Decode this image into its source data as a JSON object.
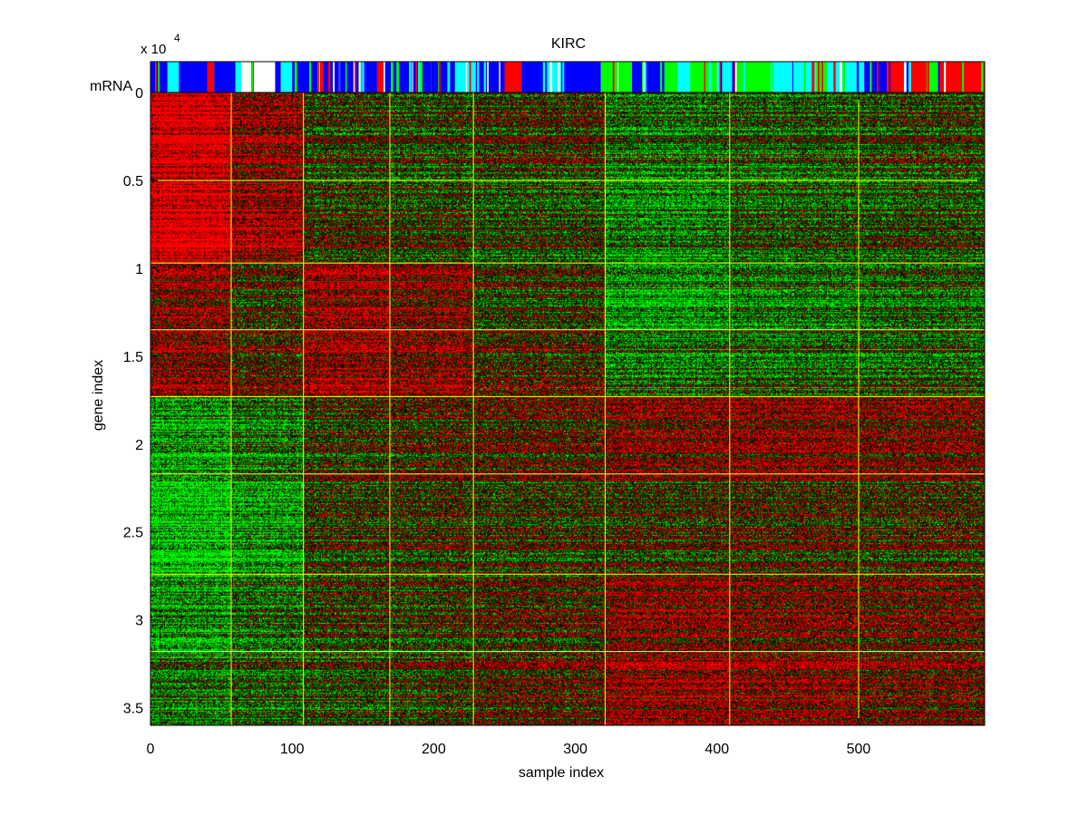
{
  "chart_data": {
    "type": "heatmap",
    "title": "KIRC",
    "xlabel": "sample index",
    "ylabel": "gene index",
    "strip_label": "mRNA",
    "y_exponent": {
      "base": "x 10",
      "power": "4"
    },
    "xlim": [
      0,
      589
    ],
    "ylim": [
      0,
      3.6
    ],
    "xticks": [
      0,
      100,
      200,
      300,
      400,
      500
    ],
    "xtick_labels": [
      "0",
      "100",
      "200",
      "300",
      "400",
      "500"
    ],
    "yticks": [
      0,
      0.5,
      1,
      1.5,
      2,
      2.5,
      3,
      3.5
    ],
    "ytick_labels": [
      "0",
      "0.5",
      "1",
      "1.5",
      "2",
      "2.5",
      "3",
      "3.5"
    ],
    "sample_cluster_boundaries": [
      57,
      108,
      169,
      228,
      321,
      409,
      500
    ],
    "gene_cluster_boundaries": [
      0.5,
      0.97,
      1.35,
      1.73,
      2.17,
      2.74,
      3.18
    ],
    "row_segments": [
      0,
      0.5,
      0.97,
      1.35,
      1.73,
      2.17,
      2.74,
      3.18,
      3.6
    ],
    "col_segments": [
      0,
      57,
      108,
      169,
      228,
      321,
      409,
      500,
      589
    ],
    "block_bias": [
      [
        0.85,
        0.4,
        -0.05,
        -0.1,
        0.0,
        -0.3,
        -0.2,
        -0.1
      ],
      [
        0.95,
        0.55,
        0.05,
        0.0,
        -0.1,
        -0.35,
        -0.15,
        -0.1
      ],
      [
        0.45,
        0.05,
        0.55,
        0.4,
        0.0,
        -0.45,
        -0.3,
        -0.2
      ],
      [
        0.35,
        0.1,
        0.45,
        0.35,
        0.05,
        -0.35,
        -0.3,
        -0.25
      ],
      [
        -0.55,
        -0.35,
        -0.05,
        0.05,
        0.1,
        0.3,
        0.35,
        0.25
      ],
      [
        -0.65,
        -0.45,
        0.05,
        0.1,
        0.05,
        0.1,
        0.15,
        0.1
      ],
      [
        -0.45,
        -0.25,
        0.0,
        0.0,
        0.1,
        0.4,
        0.3,
        0.25
      ],
      [
        -0.35,
        -0.25,
        -0.15,
        -0.05,
        0.1,
        0.45,
        0.35,
        0.2
      ]
    ],
    "strip_blocks": [
      {
        "start": 0,
        "end": 12,
        "color": "#0000ff"
      },
      {
        "start": 12,
        "end": 20,
        "color": "#00ffff"
      },
      {
        "start": 20,
        "end": 40,
        "color": "#0000ff"
      },
      {
        "start": 40,
        "end": 45,
        "color": "#ff0000"
      },
      {
        "start": 45,
        "end": 60,
        "color": "#0000ff"
      },
      {
        "start": 60,
        "end": 64,
        "color": "#00ffff"
      },
      {
        "start": 64,
        "end": 70,
        "color": "#ffffff"
      },
      {
        "start": 70,
        "end": 73,
        "color": "#ff0000"
      },
      {
        "start": 73,
        "end": 88,
        "color": "#ffffff"
      },
      {
        "start": 88,
        "end": 92,
        "color": "#0000ff"
      },
      {
        "start": 92,
        "end": 100,
        "color": "#00ffff"
      },
      {
        "start": 100,
        "end": 118,
        "color": "#0000ff"
      },
      {
        "start": 118,
        "end": 122,
        "color": "#ff0000"
      },
      {
        "start": 122,
        "end": 160,
        "color": "#0000ff"
      },
      {
        "start": 160,
        "end": 165,
        "color": "#ff0000"
      },
      {
        "start": 165,
        "end": 198,
        "color": "#0000ff"
      },
      {
        "start": 198,
        "end": 215,
        "color": "#0000ff"
      },
      {
        "start": 215,
        "end": 232,
        "color": "#00ffff"
      },
      {
        "start": 232,
        "end": 250,
        "color": "#0000ff"
      },
      {
        "start": 250,
        "end": 262,
        "color": "#ff0000"
      },
      {
        "start": 262,
        "end": 280,
        "color": "#0000ff"
      },
      {
        "start": 280,
        "end": 290,
        "color": "#00ffff"
      },
      {
        "start": 290,
        "end": 318,
        "color": "#0000ff"
      },
      {
        "start": 318,
        "end": 340,
        "color": "#00ff00"
      },
      {
        "start": 340,
        "end": 360,
        "color": "#0000ff"
      },
      {
        "start": 360,
        "end": 372,
        "color": "#00ff00"
      },
      {
        "start": 372,
        "end": 382,
        "color": "#00ffff"
      },
      {
        "start": 382,
        "end": 400,
        "color": "#00ff00"
      },
      {
        "start": 400,
        "end": 412,
        "color": "#00ffff"
      },
      {
        "start": 412,
        "end": 438,
        "color": "#00ff00"
      },
      {
        "start": 438,
        "end": 470,
        "color": "#00ffff"
      },
      {
        "start": 470,
        "end": 478,
        "color": "#00ff00"
      },
      {
        "start": 478,
        "end": 504,
        "color": "#00ffff"
      },
      {
        "start": 504,
        "end": 520,
        "color": "#0000ff"
      },
      {
        "start": 520,
        "end": 532,
        "color": "#ff0000"
      },
      {
        "start": 532,
        "end": 537,
        "color": "#ffffff"
      },
      {
        "start": 537,
        "end": 548,
        "color": "#ff0000"
      },
      {
        "start": 548,
        "end": 556,
        "color": "#00ff00"
      },
      {
        "start": 556,
        "end": 589,
        "color": "#ff0000"
      }
    ],
    "colors": {
      "high": "#ff0000",
      "low": "#00ff00",
      "mid": "#000000",
      "cluster_lines": "#ffff00"
    },
    "grid": false
  }
}
